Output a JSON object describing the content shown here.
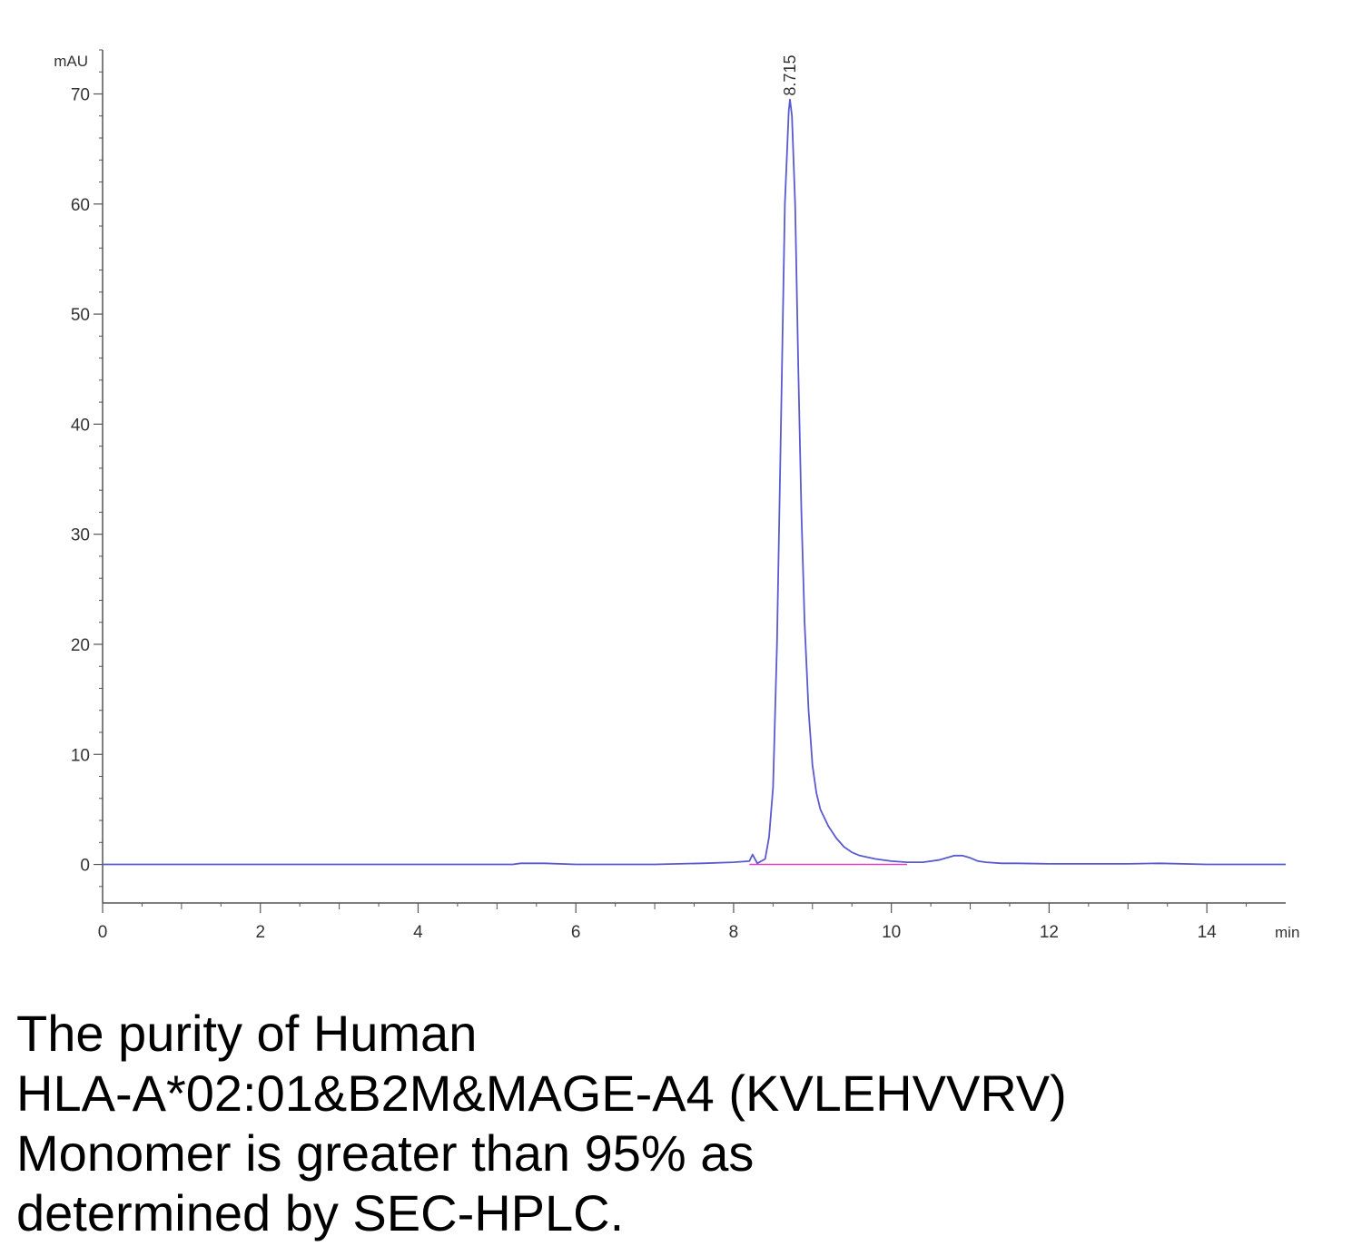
{
  "chart_data": {
    "type": "line",
    "title": "",
    "xlabel": "min",
    "ylabel": "mAU",
    "xlim": [
      0,
      15
    ],
    "ylim": [
      -3.5,
      74
    ],
    "x_ticks": [
      0,
      2,
      4,
      6,
      8,
      10,
      12,
      14
    ],
    "y_ticks": [
      0,
      10,
      20,
      30,
      40,
      50,
      60,
      70
    ],
    "grid": false,
    "legend": "none",
    "peak_label": {
      "text": "8.715",
      "x": 8.715,
      "y": 69.5
    },
    "series": [
      {
        "color": "#5a5ad0",
        "x": [
          0,
          2,
          4,
          5.2,
          5.3,
          5.6,
          6,
          7,
          7.6,
          8.0,
          8.2,
          8.24,
          8.3,
          8.4,
          8.45,
          8.5,
          8.55,
          8.6,
          8.65,
          8.7,
          8.715,
          8.74,
          8.78,
          8.82,
          8.86,
          8.9,
          8.95,
          9.0,
          9.05,
          9.1,
          9.2,
          9.3,
          9.4,
          9.5,
          9.6,
          9.8,
          10.0,
          10.2,
          10.4,
          10.6,
          10.7,
          10.8,
          10.9,
          11.0,
          11.1,
          11.2,
          11.4,
          11.6,
          12,
          13,
          13.4,
          14,
          14.5,
          15
        ],
        "y": [
          0,
          0,
          0,
          0,
          0.1,
          0.1,
          0,
          0,
          0.1,
          0.2,
          0.3,
          0.9,
          0.1,
          0.5,
          2.5,
          7,
          20,
          40,
          60,
          68.5,
          69.5,
          68,
          60,
          45,
          32,
          22,
          14,
          9,
          6.5,
          5,
          3.5,
          2.4,
          1.6,
          1.1,
          0.8,
          0.5,
          0.3,
          0.2,
          0.2,
          0.4,
          0.6,
          0.8,
          0.8,
          0.6,
          0.3,
          0.2,
          0.1,
          0.1,
          0.05,
          0.05,
          0.1,
          0,
          0,
          0
        ]
      },
      {
        "color": "#e040c0",
        "x": [
          8.2,
          10.2
        ],
        "y": [
          0,
          0
        ]
      }
    ]
  },
  "caption": {
    "lines": [
      "The purity of Human",
      "HLA-A*02:01&B2M&MAGE-A4 (KVLEHVVRV)",
      "Monomer is greater than 95% as",
      "determined by SEC-HPLC."
    ]
  }
}
